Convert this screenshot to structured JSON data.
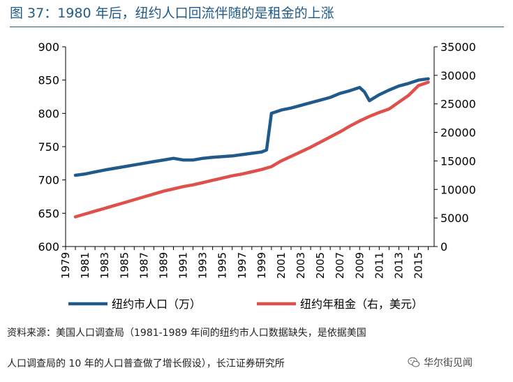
{
  "figure": {
    "title": "图 37：1980 年后，纽约人口回流伴随的是租金的上涨"
  },
  "source": {
    "line1": "资料来源：美国人口调查局（1981-1989 年间的纽约市人口数据缺失，是依据美国",
    "line2": "人口调查局的 10 年的人口普查做了增长假设），长江证券研究所"
  },
  "watermark": {
    "text": "华尔街见闻",
    "icon": "wechat-logo-icon"
  },
  "colors": {
    "population": "#1f5a8a",
    "rent": "#e0504a",
    "axis": "#000000",
    "title": "#1f5a8a"
  },
  "chart_data": {
    "type": "line",
    "title": "",
    "grid": false,
    "legend_position": "bottom",
    "x_tick_labels": [
      "1979",
      "1981",
      "1983",
      "1985",
      "1987",
      "1989",
      "1991",
      "1993",
      "1995",
      "1997",
      "1999",
      "2001",
      "2003",
      "2005",
      "2007",
      "2009",
      "2011",
      "2013",
      "2015"
    ],
    "xlim": [
      1979,
      2016.6
    ],
    "y_left": {
      "label": "",
      "lim": [
        600,
        900
      ],
      "ticks": [
        600,
        650,
        700,
        750,
        800,
        850,
        900
      ]
    },
    "y_right": {
      "label": "",
      "lim": [
        0,
        35000
      ],
      "ticks": [
        0,
        5000,
        10000,
        15000,
        20000,
        25000,
        30000,
        35000
      ]
    },
    "series": [
      {
        "name": "纽约市人口（万）",
        "axis": "left",
        "color": "#1f5a8a",
        "points": [
          [
            1980,
            707
          ],
          [
            1981,
            709
          ],
          [
            1982,
            712
          ],
          [
            1983,
            715
          ],
          [
            1984,
            717.5
          ],
          [
            1985,
            720
          ],
          [
            1986,
            722.5
          ],
          [
            1987,
            725
          ],
          [
            1988,
            727.5
          ],
          [
            1989,
            730
          ],
          [
            1990,
            732.5
          ],
          [
            1991,
            730
          ],
          [
            1992,
            730
          ],
          [
            1993,
            732.5
          ],
          [
            1994,
            734
          ],
          [
            1995,
            735
          ],
          [
            1996,
            736
          ],
          [
            1997,
            738
          ],
          [
            1998,
            740
          ],
          [
            1999,
            742
          ],
          [
            1999.5,
            745
          ],
          [
            2000,
            800
          ],
          [
            2001,
            805
          ],
          [
            2002,
            808
          ],
          [
            2003,
            812
          ],
          [
            2004,
            816
          ],
          [
            2005,
            820
          ],
          [
            2006,
            824
          ],
          [
            2007,
            830
          ],
          [
            2008,
            834
          ],
          [
            2009,
            839
          ],
          [
            2009.5,
            832
          ],
          [
            2010,
            819
          ],
          [
            2011,
            828
          ],
          [
            2012,
            835
          ],
          [
            2013,
            841
          ],
          [
            2014,
            845
          ],
          [
            2015,
            850
          ],
          [
            2016,
            852
          ]
        ]
      },
      {
        "name": "纽约年租金（右，美元）",
        "axis": "right",
        "color": "#e0504a",
        "points": [
          [
            1980,
            5200
          ],
          [
            1981,
            5700
          ],
          [
            1982,
            6200
          ],
          [
            1983,
            6700
          ],
          [
            1984,
            7200
          ],
          [
            1985,
            7700
          ],
          [
            1986,
            8200
          ],
          [
            1987,
            8700
          ],
          [
            1988,
            9200
          ],
          [
            1989,
            9700
          ],
          [
            1990,
            10100
          ],
          [
            1991,
            10500
          ],
          [
            1992,
            10800
          ],
          [
            1993,
            11200
          ],
          [
            1994,
            11600
          ],
          [
            1995,
            12000
          ],
          [
            1996,
            12400
          ],
          [
            1997,
            12700
          ],
          [
            1998,
            13100
          ],
          [
            1999,
            13500
          ],
          [
            2000,
            14000
          ],
          [
            2001,
            15000
          ],
          [
            2002,
            15800
          ],
          [
            2003,
            16600
          ],
          [
            2004,
            17400
          ],
          [
            2005,
            18300
          ],
          [
            2006,
            19200
          ],
          [
            2007,
            20100
          ],
          [
            2008,
            21100
          ],
          [
            2009,
            22000
          ],
          [
            2010,
            22800
          ],
          [
            2011,
            23500
          ],
          [
            2012,
            24100
          ],
          [
            2013,
            25300
          ],
          [
            2014,
            26500
          ],
          [
            2015,
            28200
          ],
          [
            2016,
            28800
          ]
        ]
      }
    ]
  }
}
